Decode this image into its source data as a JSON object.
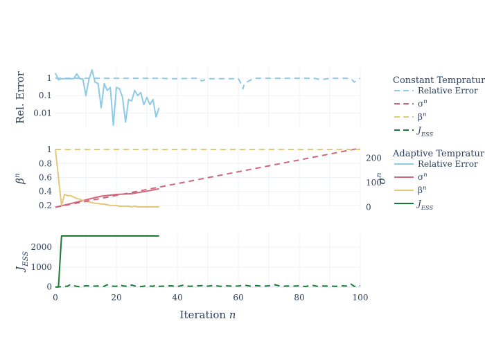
{
  "chart_data": [
    {
      "type": "line",
      "panel": "top",
      "ylabel": "Rel. Error",
      "yscale": "log",
      "yticks": [
        "1",
        "0.1",
        "0.01"
      ],
      "ylim": [
        0.0015,
        4
      ],
      "xlim": [
        0,
        100
      ],
      "series": [
        {
          "name": "Relative Error",
          "group": "Adaptive Temprature",
          "style": "solid",
          "color": "#8ecae6",
          "x": [
            0,
            1,
            2,
            3,
            4,
            5,
            6,
            7,
            8,
            9,
            10,
            11,
            12,
            13,
            14,
            15,
            16,
            17,
            18,
            19,
            20,
            21,
            22,
            23,
            24,
            25,
            26,
            27,
            28,
            29,
            30,
            31,
            32,
            33,
            34
          ],
          "y": [
            2,
            0.8,
            0.95,
            0.95,
            0.95,
            0.95,
            0.95,
            1.8,
            0.95,
            0.9,
            0.1,
            0.9,
            3.0,
            0.6,
            0.5,
            0.02,
            0.5,
            0.2,
            0.3,
            0.002,
            0.3,
            0.25,
            0.08,
            0.003,
            0.06,
            0.05,
            0.2,
            0.1,
            0.15,
            0.03,
            0.08,
            0.03,
            0.06,
            0.006,
            0.02
          ]
        },
        {
          "name": "Relative Error",
          "group": "Constant Temprature",
          "style": "dash",
          "color": "#8ecae6",
          "x": [
            0,
            5,
            10,
            15,
            20,
            25,
            30,
            33,
            35,
            37,
            40,
            45,
            47,
            48,
            50,
            55,
            60,
            61,
            61.5,
            62,
            65,
            70,
            75,
            80,
            85,
            87,
            90,
            95,
            97,
            98,
            100
          ],
          "y": [
            1,
            1,
            1,
            1,
            1,
            1,
            1,
            1,
            1,
            0.95,
            0.95,
            1,
            1,
            0.7,
            0.95,
            0.95,
            0.95,
            0.45,
            0.25,
            0.5,
            1,
            1,
            1,
            1,
            1,
            0.8,
            1,
            1,
            0.95,
            0.6,
            1
          ]
        }
      ]
    },
    {
      "type": "line",
      "panel": "middle",
      "ylabel": "β",
      "ylabel_sup": "n",
      "y2label": "σ",
      "y2label_sup": "n",
      "yticks": [
        "1",
        "0.8",
        "0.6",
        "0.4",
        "0.2"
      ],
      "ylim": [
        0.15,
        1.02
      ],
      "y2ticks": [
        "0",
        "100",
        "200"
      ],
      "y2lim": [
        -7,
        240
      ],
      "xlim": [
        0,
        100
      ],
      "series": [
        {
          "name": "σ",
          "sup": "n",
          "group": "Adaptive Temprature",
          "style": "solid",
          "color": "#cf6679",
          "axis": "y2",
          "x": [
            0,
            5,
            10,
            15,
            20,
            25,
            30,
            34
          ],
          "y": [
            0,
            15,
            30,
            45,
            52,
            55,
            65,
            75
          ]
        },
        {
          "name": "β",
          "sup": "n",
          "group": "Adaptive Temprature",
          "style": "solid",
          "color": "#e3c878",
          "axis": "y",
          "x": [
            0,
            1,
            2,
            3,
            4,
            5,
            6,
            7,
            8,
            9,
            10,
            11,
            12,
            13,
            14,
            15,
            16,
            17,
            18,
            19,
            20,
            21,
            22,
            23,
            24,
            25,
            26,
            27,
            28,
            29,
            30,
            31,
            32,
            33,
            34
          ],
          "y": [
            1.0,
            0.6,
            0.2,
            0.36,
            0.34,
            0.34,
            0.32,
            0.3,
            0.29,
            0.27,
            0.26,
            0.25,
            0.24,
            0.23,
            0.23,
            0.22,
            0.22,
            0.21,
            0.2,
            0.2,
            0.2,
            0.19,
            0.19,
            0.19,
            0.19,
            0.18,
            0.19,
            0.18,
            0.18,
            0.18,
            0.18,
            0.18,
            0.18,
            0.18,
            0.18
          ]
        },
        {
          "name": "σ",
          "sup": "n",
          "group": "Constant Temprature",
          "style": "dash",
          "color": "#cf6679",
          "axis": "y2",
          "x": [
            0,
            100
          ],
          "y": [
            0,
            240
          ]
        },
        {
          "name": "β",
          "sup": "n",
          "group": "Constant Temprature",
          "style": "dash",
          "color": "#e3c878",
          "axis": "y",
          "x": [
            0,
            100
          ],
          "y": [
            1.0,
            1.0
          ]
        }
      ]
    },
    {
      "type": "line",
      "panel": "bottom",
      "ylabel": "J",
      "ylabel_sub": "ESS",
      "xlabel": "Iteration",
      "xlabel_var": "n",
      "yticks": [
        "2000",
        "1000",
        "0"
      ],
      "ylim": [
        -80,
        2700
      ],
      "xticks": [
        "0",
        "20",
        "40",
        "60",
        "80",
        "100"
      ],
      "xlim": [
        0,
        100
      ],
      "series": [
        {
          "name": "J",
          "sub": "ESS",
          "group": "Adaptive Temprature",
          "style": "solid",
          "color": "#1a7a35",
          "x": [
            0,
            1,
            2,
            34
          ],
          "y": [
            0,
            0,
            2560,
            2560
          ]
        },
        {
          "name": "J",
          "sub": "ESS",
          "group": "Constant Temprature",
          "style": "dash",
          "color": "#1a7a35",
          "x": [
            0,
            2,
            4,
            5,
            6,
            8,
            10,
            12,
            14,
            16,
            17,
            18,
            20,
            21,
            22,
            24,
            25,
            26,
            28,
            30,
            32,
            33,
            34,
            36,
            38,
            40,
            42,
            44,
            46,
            48,
            50,
            52,
            54,
            56,
            58,
            60,
            62,
            64,
            66,
            68,
            70,
            72,
            74,
            76,
            78,
            80,
            82,
            84,
            86,
            88,
            90,
            92,
            94,
            96,
            97,
            98,
            100
          ],
          "y": [
            0,
            10,
            40,
            130,
            60,
            10,
            60,
            40,
            50,
            30,
            110,
            50,
            30,
            110,
            60,
            20,
            100,
            50,
            20,
            60,
            30,
            100,
            30,
            40,
            60,
            20,
            90,
            30,
            50,
            70,
            40,
            80,
            30,
            60,
            40,
            50,
            90,
            40,
            70,
            30,
            60,
            110,
            30,
            50,
            40,
            60,
            20,
            90,
            30,
            50,
            40,
            30,
            60,
            40,
            140,
            30,
            60
          ]
        }
      ]
    }
  ],
  "legend": {
    "groups": [
      {
        "title": "Constant Temprature",
        "items": [
          {
            "name": "Relative Error",
            "sup": "",
            "sub": "",
            "color": "#8ecae6",
            "style": "dash"
          },
          {
            "name": "σ",
            "sup": "n",
            "sub": "",
            "color": "#cf6679",
            "style": "dash"
          },
          {
            "name": "β",
            "sup": "n",
            "sub": "",
            "color": "#e3c878",
            "style": "dash"
          },
          {
            "name": "J",
            "sup": "",
            "sub": "ESS",
            "color": "#1a7a35",
            "style": "dash"
          }
        ]
      },
      {
        "title": "Adaptive Temprature",
        "items": [
          {
            "name": "Relative Error",
            "sup": "",
            "sub": "",
            "color": "#8ecae6",
            "style": "solid"
          },
          {
            "name": "σ",
            "sup": "n",
            "sub": "",
            "color": "#cf6679",
            "style": "solid"
          },
          {
            "name": "β",
            "sup": "n",
            "sub": "",
            "color": "#e3c878",
            "style": "solid"
          },
          {
            "name": "J",
            "sup": "",
            "sub": "ESS",
            "color": "#1a7a35",
            "style": "solid"
          }
        ]
      }
    ]
  }
}
